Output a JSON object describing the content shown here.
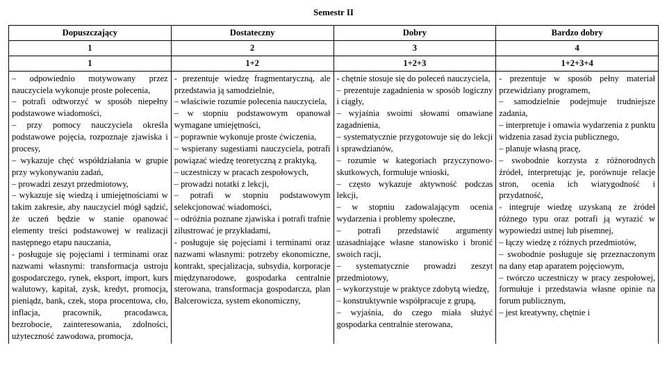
{
  "title": "Semestr II",
  "columns": {
    "headers": [
      "Dopuszczający",
      "Dostateczny",
      "Dobry",
      "Bardzo dobry"
    ],
    "numbers": [
      "1",
      "2",
      "3",
      "4"
    ],
    "formulas": [
      "1",
      "1+2",
      "1+2+3",
      "1+2+3+4"
    ]
  },
  "cells": {
    "col1": "– odpowiednio motywowany przez nauczyciela wykonuje proste polecenia,\n– potrafi odtworzyć w sposób niepełny podstawowe wiadomości,\n– przy pomocy nauczyciela określa podstawowe pojęcia, rozpoznaje zjawiska i procesy,\n– wykazuje chęć współdziałania w grupie przy wykonywaniu zadań,\n– prowadzi zeszyt przedmiotowy,\n– wykazuje się wiedzą i umiejętnościami w takim zakresie, aby nauczyciel mógł sądzić, że uczeń będzie w stanie opanować elementy treści podstawowej w realizacji następnego etapu nauczania,\n- posługuje się pojęciami i terminami oraz nazwami własnymi: transformacja ustroju gospodarczego, rynek, eksport, import, kurs walutowy, kapitał, zysk, kredyt, promocja, pieniądz, bank, czek, stopa procentowa, cło, inflacja, pracownik, pracodawca, bezrobocie, zainteresowania, zdolności, użyteczność zawodowa, promocja,",
    "col2": "- prezentuje wiedzę fragmentaryczną, ale przedstawia ją samodzielnie,\n– właściwie rozumie polecenia nauczyciela,\n– w stopniu podstawowym opanował wymagane umiejętności,\n– poprawnie wykonuje proste ćwiczenia,\n– wspierany sugestiami nauczyciela, potrafi powiązać wiedzę teoretyczną z praktyką,\n– uczestniczy w pracach zespołowych,\n– prowadzi notatki z lekcji,\n– potrafi w stopniu podstawowym selekcjonować wiadomości,\n– odróżnia poznane zjawiska i potrafi trafnie zilustrować je przykładami,\n- posługuje się pojęciami i terminami oraz nazwami własnymi: potrzeby ekonomiczne, kontrakt, specjalizacja, subsydia, korporacje międzynarodowe, gospodarka centralnie sterowana, transformacja gospodarcza, plan Balcerowicza, system ekonomiczny,",
    "col3": "- chętnie stosuje się do poleceń nauczyciela,\n– prezentuje zagadnienia w sposób logiczny i ciągły,\n– wyjaśnia swoimi słowami omawiane zagadnienia,\n– systematycznie przygotowuje się do lekcji i sprawdzianów,\n– rozumie w kategoriach przyczynowo-skutkowych, formułuje wnioski,\n– często wykazuje aktywność podczas lekcji,\n– w stopniu zadowalającym ocenia wydarzenia i problemy społeczne,\n– potrafi przedstawić argumenty uzasadniające własne stanowisko i bronić swoich racji,\n– systematycznie prowadzi zeszyt przedmiotowy,\n– wykorzystuje w praktyce zdobytą wiedzę,\n– konstruktywnie współpracuje z grupą,\n– wyjaśnia, do czego miała służyć gospodarka centralnie sterowana,",
    "col4": "- prezentuje w sposób pełny materiał przewidziany programem,\n– samodzielnie podejmuje trudniejsze zadania,\n– interpretuje i omawia wydarzenia z punktu widzenia zasad życia publicznego,\n– planuje własną pracę,\n– swobodnie korzysta z różnorodnych źródeł, interpretując je, porównuje relacje stron, ocenia ich wiarygodność i przydatność,\n- integruje wiedzę uzyskaną ze źródeł różnego typu oraz potrafi ją wyrazić w wypowiedzi ustnej lub pisemnej,\n– łączy wiedzę z różnych przedmiotów,\n– swobodnie posługuje się przeznaczonym na dany etap aparatem pojęciowym,\n– twórczo uczestniczy w pracy zespołowej, formułuje i przedstawia własne opinie na forum publicznym,\n– jest kreatywny, chętnie i"
  }
}
